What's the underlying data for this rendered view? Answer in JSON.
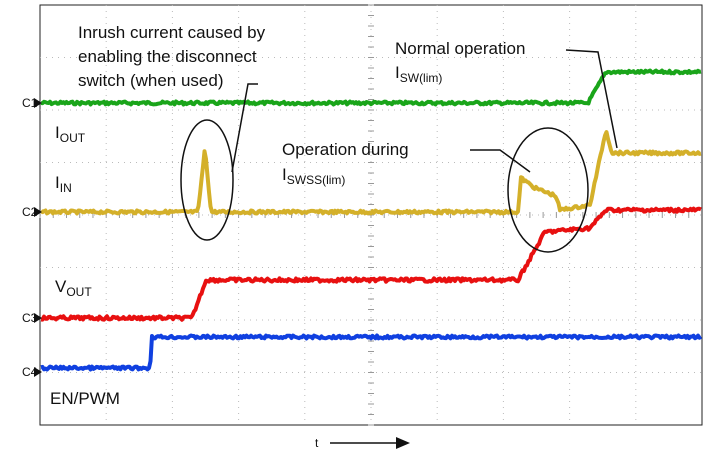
{
  "annotations": {
    "inrush": [
      "Inrush current caused by",
      "enabling the disconnect",
      "switch (when used)"
    ],
    "normal": {
      "title": "Normal operation",
      "symbol": "I",
      "sub": "SW(lim)"
    },
    "during": {
      "title": "Operation during",
      "symbol": "I",
      "sub": "SWSS(lim)"
    }
  },
  "traces": {
    "iout": {
      "symbol": "I",
      "sub": "OUT"
    },
    "iin": {
      "symbol": "I",
      "sub": "IN"
    },
    "vout": {
      "symbol": "V",
      "sub": "OUT"
    },
    "en": "EN/PWM"
  },
  "channels": [
    "C1",
    "C2",
    "C3",
    "C4"
  ],
  "x_axis": "t"
}
